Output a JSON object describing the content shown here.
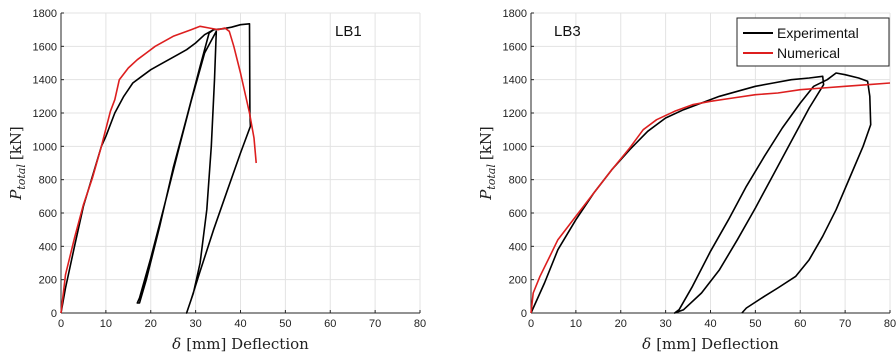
{
  "chart_data": [
    {
      "type": "line",
      "tag": "LB1",
      "xlabel_symbol": "δ",
      "xlabel_rest": "[mm] Deflection",
      "ylabel_main": "P",
      "ylabel_sub": "total",
      "ylabel_unit": "[kN]",
      "xlim": [
        0,
        80
      ],
      "ylim": [
        0,
        1800
      ],
      "xticks": [
        0,
        10,
        20,
        30,
        40,
        50,
        60,
        70,
        80
      ],
      "yticks": [
        0,
        200,
        400,
        600,
        800,
        1000,
        1200,
        1400,
        1600,
        1800
      ],
      "grid": true,
      "legend": false,
      "series": [
        {
          "color": "#000000",
          "points": [
            [
              0,
              0
            ],
            [
              1,
              150
            ],
            [
              3,
              400
            ],
            [
              5,
              640
            ],
            [
              7,
              820
            ],
            [
              9,
              1000
            ],
            [
              10,
              1060
            ],
            [
              12,
              1200
            ],
            [
              14,
              1300
            ],
            [
              15,
              1340
            ],
            [
              16,
              1380
            ],
            [
              18,
              1420
            ],
            [
              20,
              1460
            ],
            [
              22,
              1490
            ],
            [
              24,
              1520
            ],
            [
              26,
              1550
            ],
            [
              28,
              1580
            ],
            [
              30,
              1620
            ],
            [
              32,
              1670
            ],
            [
              34,
              1700
            ],
            [
              36,
              1705
            ],
            [
              38,
              1715
            ],
            [
              40,
              1730
            ],
            [
              42,
              1735
            ],
            [
              42.1,
              1200
            ],
            [
              42.2,
              1120
            ],
            [
              40,
              960
            ],
            [
              37,
              730
            ],
            [
              34,
              500
            ],
            [
              31,
              250
            ],
            [
              29,
              80
            ],
            [
              28,
              0
            ],
            [
              29.5,
              120
            ],
            [
              31,
              300
            ],
            [
              32.5,
              620
            ],
            [
              33.5,
              1000
            ],
            [
              34.2,
              1400
            ],
            [
              34.6,
              1690
            ],
            [
              32,
              1560
            ],
            [
              29,
              1270
            ],
            [
              26,
              960
            ],
            [
              23,
              640
            ],
            [
              20,
              330
            ],
            [
              17.5,
              90
            ],
            [
              17,
              60
            ],
            [
              17.5,
              60
            ],
            [
              19,
              200
            ],
            [
              22,
              520
            ],
            [
              25,
              870
            ],
            [
              28,
              1170
            ],
            [
              31,
              1480
            ],
            [
              33,
              1680
            ],
            [
              34,
              1700
            ]
          ]
        },
        {
          "color": "#dd1f1f",
          "points": [
            [
              0,
              0
            ],
            [
              1,
              230
            ],
            [
              3,
              450
            ],
            [
              5,
              650
            ],
            [
              7,
              810
            ],
            [
              9,
              1000
            ],
            [
              11,
              1210
            ],
            [
              12,
              1280
            ],
            [
              13,
              1400
            ],
            [
              15,
              1470
            ],
            [
              17,
              1520
            ],
            [
              19,
              1560
            ],
            [
              21,
              1600
            ],
            [
              23,
              1630
            ],
            [
              25,
              1660
            ],
            [
              27,
              1680
            ],
            [
              29,
              1700
            ],
            [
              31,
              1720
            ],
            [
              33,
              1710
            ],
            [
              35,
              1700
            ],
            [
              36.5,
              1710
            ],
            [
              37.5,
              1690
            ],
            [
              38.5,
              1600
            ],
            [
              40,
              1440
            ],
            [
              41,
              1320
            ],
            [
              42,
              1200
            ],
            [
              43,
              1050
            ],
            [
              43.5,
              900
            ]
          ]
        }
      ]
    },
    {
      "type": "line",
      "tag": "LB3",
      "xlabel_symbol": "δ",
      "xlabel_rest": "[mm] Deflection",
      "ylabel_main": "P",
      "ylabel_sub": "total",
      "ylabel_unit": "[kN]",
      "xlim": [
        0,
        80
      ],
      "ylim": [
        0,
        1800
      ],
      "xticks": [
        0,
        10,
        20,
        30,
        40,
        50,
        60,
        70,
        80
      ],
      "yticks": [
        0,
        200,
        400,
        600,
        800,
        1000,
        1200,
        1400,
        1600,
        1800
      ],
      "grid": true,
      "legend": true,
      "legend_position": "top-right",
      "series": [
        {
          "name": "Experimental",
          "color": "#000000",
          "points": [
            [
              0,
              0
            ],
            [
              3,
              180
            ],
            [
              6,
              380
            ],
            [
              10,
              560
            ],
            [
              14,
              720
            ],
            [
              18,
              860
            ],
            [
              22,
              980
            ],
            [
              26,
              1090
            ],
            [
              30,
              1170
            ],
            [
              34,
              1220
            ],
            [
              38,
              1260
            ],
            [
              42,
              1300
            ],
            [
              46,
              1330
            ],
            [
              50,
              1360
            ],
            [
              54,
              1380
            ],
            [
              58,
              1400
            ],
            [
              62,
              1410
            ],
            [
              65,
              1420
            ],
            [
              65.2,
              1370
            ],
            [
              62,
              1230
            ],
            [
              58,
              1030
            ],
            [
              54,
              830
            ],
            [
              50,
              630
            ],
            [
              46,
              440
            ],
            [
              42,
              260
            ],
            [
              38,
              120
            ],
            [
              34,
              20
            ],
            [
              32,
              0
            ],
            [
              33,
              20
            ],
            [
              36,
              160
            ],
            [
              40,
              370
            ],
            [
              44,
              560
            ],
            [
              48,
              760
            ],
            [
              52,
              940
            ],
            [
              56,
              1110
            ],
            [
              60,
              1260
            ],
            [
              63,
              1360
            ],
            [
              66,
              1400
            ],
            [
              68,
              1440
            ],
            [
              70,
              1430
            ],
            [
              73,
              1410
            ],
            [
              75,
              1390
            ],
            [
              75.5,
              1300
            ],
            [
              75.7,
              1130
            ],
            [
              74,
              1000
            ],
            [
              71,
              810
            ],
            [
              68,
              620
            ],
            [
              65,
              460
            ],
            [
              62,
              320
            ],
            [
              59,
              220
            ],
            [
              55,
              150
            ],
            [
              52,
              100
            ],
            [
              48,
              30
            ],
            [
              47,
              0
            ]
          ]
        },
        {
          "name": "Numerical",
          "color": "#dd1f1f",
          "points": [
            [
              0,
              0
            ],
            [
              0.5,
              120
            ],
            [
              2,
              220
            ],
            [
              4,
              330
            ],
            [
              6,
              440
            ],
            [
              8,
              510
            ],
            [
              10,
              580
            ],
            [
              14,
              720
            ],
            [
              18,
              860
            ],
            [
              22,
              990
            ],
            [
              25,
              1100
            ],
            [
              28,
              1160
            ],
            [
              32,
              1210
            ],
            [
              36,
              1250
            ],
            [
              40,
              1270
            ],
            [
              45,
              1290
            ],
            [
              50,
              1310
            ],
            [
              55,
              1320
            ],
            [
              60,
              1340
            ],
            [
              65,
              1350
            ],
            [
              70,
              1360
            ],
            [
              75,
              1370
            ],
            [
              80,
              1380
            ]
          ]
        }
      ]
    }
  ]
}
